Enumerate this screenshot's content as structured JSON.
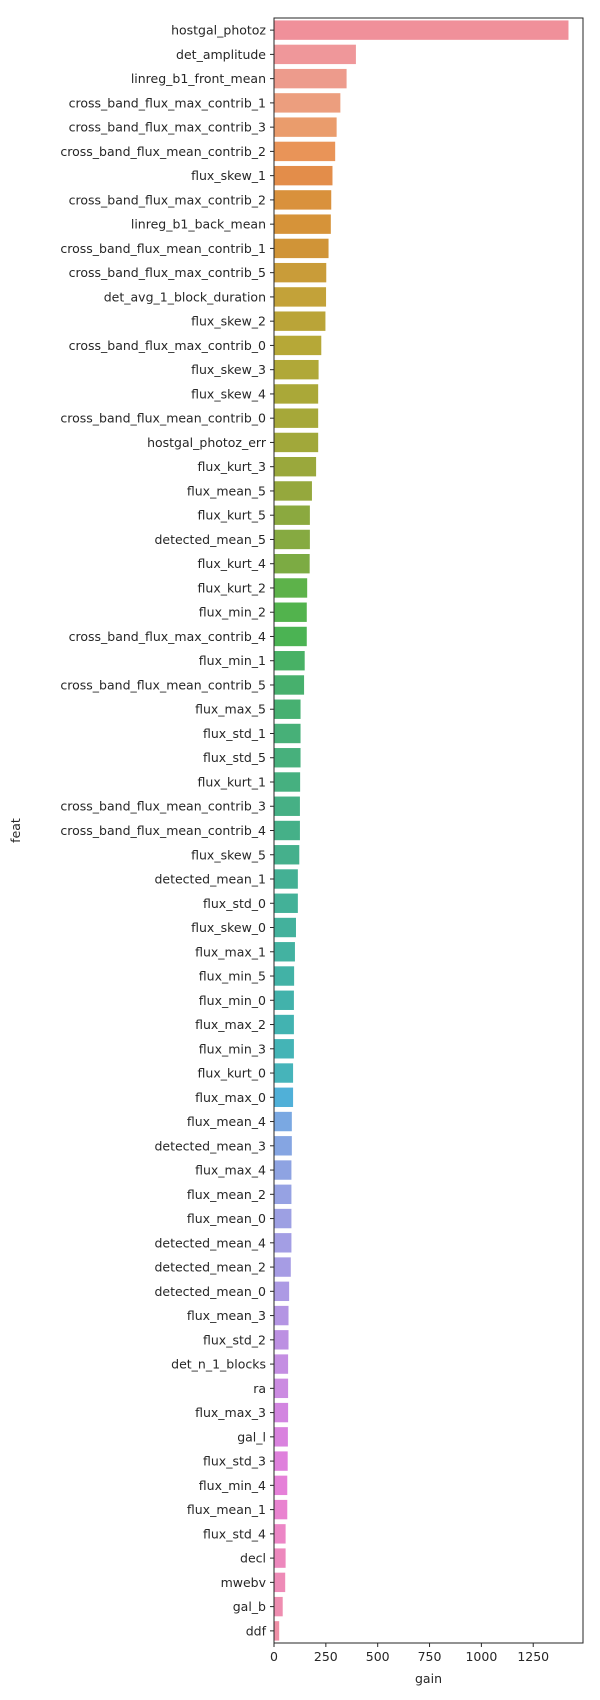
{
  "chart_data": {
    "type": "bar",
    "orientation": "horizontal",
    "xlabel": "gain",
    "ylabel": "feat",
    "xlim": [
      0,
      1490
    ],
    "xticks": [
      0,
      250,
      500,
      750,
      1000,
      1250
    ],
    "grid": false,
    "categories": [
      "hostgal_photoz",
      "det_amplitude",
      "linreg_b1_front_mean",
      "cross_band_flux_max_contrib_1",
      "cross_band_flux_max_contrib_3",
      "cross_band_flux_mean_contrib_2",
      "flux_skew_1",
      "cross_band_flux_max_contrib_2",
      "linreg_b1_back_mean",
      "cross_band_flux_mean_contrib_1",
      "cross_band_flux_max_contrib_5",
      "det_avg_1_block_duration",
      "flux_skew_2",
      "cross_band_flux_max_contrib_0",
      "flux_skew_3",
      "flux_skew_4",
      "cross_band_flux_mean_contrib_0",
      "hostgal_photoz_err",
      "flux_kurt_3",
      "flux_mean_5",
      "flux_kurt_5",
      "detected_mean_5",
      "flux_kurt_4",
      "flux_kurt_2",
      "flux_min_2",
      "cross_band_flux_max_contrib_4",
      "flux_min_1",
      "cross_band_flux_mean_contrib_5",
      "flux_max_5",
      "flux_std_1",
      "flux_std_5",
      "flux_kurt_1",
      "cross_band_flux_mean_contrib_3",
      "cross_band_flux_mean_contrib_4",
      "flux_skew_5",
      "detected_mean_1",
      "flux_std_0",
      "flux_skew_0",
      "flux_max_1",
      "flux_min_5",
      "flux_min_0",
      "flux_max_2",
      "flux_min_3",
      "flux_kurt_0",
      "flux_max_0",
      "flux_mean_4",
      "detected_mean_3",
      "flux_max_4",
      "flux_mean_2",
      "flux_mean_0",
      "detected_mean_4",
      "detected_mean_2",
      "detected_mean_0",
      "flux_mean_3",
      "flux_std_2",
      "det_n_1_blocks",
      "ra",
      "flux_max_3",
      "gal_l",
      "flux_std_3",
      "flux_min_4",
      "flux_mean_1",
      "flux_std_4",
      "decl",
      "mwebv",
      "gal_b",
      "ddf"
    ],
    "values": [
      1420,
      395,
      350,
      320,
      302,
      295,
      282,
      276,
      274,
      263,
      252,
      251,
      248,
      228,
      215,
      213,
      213,
      213,
      203,
      183,
      173,
      173,
      172,
      160,
      158,
      158,
      148,
      145,
      128,
      128,
      128,
      126,
      125,
      125,
      122,
      115,
      115,
      106,
      101,
      97,
      96,
      96,
      96,
      92,
      92,
      86,
      86,
      84,
      84,
      84,
      84,
      81,
      73,
      70,
      70,
      68,
      68,
      68,
      67,
      66,
      64,
      64,
      56,
      56,
      54,
      42,
      25
    ],
    "colors": [
      "#f0909a",
      "#ef979a",
      "#ed9b8c",
      "#ec9e7e",
      "#ea9c6c",
      "#e99458",
      "#e38d4a",
      "#d9913c",
      "#d69339",
      "#d09437",
      "#c99c39",
      "#c3a239",
      "#baa438",
      "#b6a837",
      "#b0a838",
      "#aaa838",
      "#a6a839",
      "#a1a83a",
      "#9aa83c",
      "#95a83d",
      "#8ba93f",
      "#86aa41",
      "#7cab43",
      "#5db24a",
      "#52b34d",
      "#4bb353",
      "#48b165",
      "#47b06d",
      "#47b071",
      "#47b078",
      "#47b07c",
      "#46b080",
      "#46b085",
      "#45b088",
      "#45b08c",
      "#44b094",
      "#43b198",
      "#43b19c",
      "#43b2a1",
      "#42b2a6",
      "#42b2ab",
      "#42b3b1",
      "#44b4b6",
      "#46b4ba",
      "#50b0d8",
      "#7aa8e2",
      "#85a5e2",
      "#8ea3e2",
      "#96a2e3",
      "#9da0e3",
      "#a39ee4",
      "#a69ce4",
      "#ac9ae4",
      "#b495e3",
      "#bc90e2",
      "#c48ee2",
      "#cb8be1",
      "#d285e0",
      "#d982de",
      "#df80dc",
      "#e580d8",
      "#e983d0",
      "#ec86c6",
      "#ed88bd",
      "#ee8bb7",
      "#ee8db0",
      "#ef8fa6"
    ]
  }
}
